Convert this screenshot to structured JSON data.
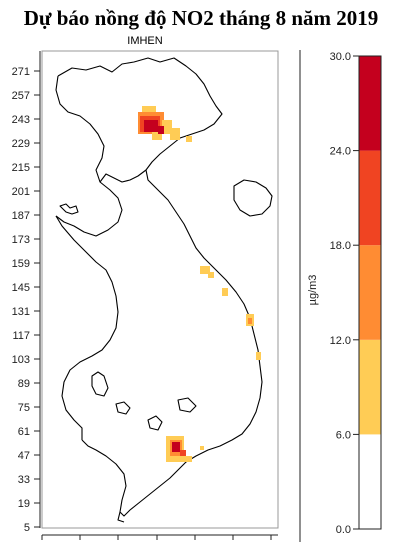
{
  "map": {
    "title": "Dự báo nồng độ NO2 tháng 8 năm 2019",
    "subtitle": "IMHEN",
    "y_ticks": [
      271,
      257,
      243,
      229,
      215,
      201,
      187,
      173,
      159,
      145,
      131,
      117,
      103,
      89,
      75,
      61,
      47,
      33,
      19,
      5
    ],
    "y_range": [
      5,
      271
    ],
    "pollutant": "NO2",
    "hotspots": [
      {
        "region": "Hanoi / Red River Delta",
        "level": "24.0-30.0"
      },
      {
        "region": "Ho Chi Minh City",
        "level": "24.0-30.0"
      }
    ]
  },
  "legend": {
    "unit": "µg/m3",
    "ticks": [
      "30.0",
      "24.0",
      "18.0",
      "12.0",
      "6.0",
      "0.0"
    ],
    "bins": [
      {
        "from": 0,
        "to": 6,
        "color": "#ffffff"
      },
      {
        "from": 6,
        "to": 12,
        "color": "#ffcc55"
      },
      {
        "from": 12,
        "to": 18,
        "color": "#ff8c33"
      },
      {
        "from": 18,
        "to": 24,
        "color": "#f04422"
      },
      {
        "from": 24,
        "to": 30,
        "color": "#c4001e"
      }
    ]
  }
}
